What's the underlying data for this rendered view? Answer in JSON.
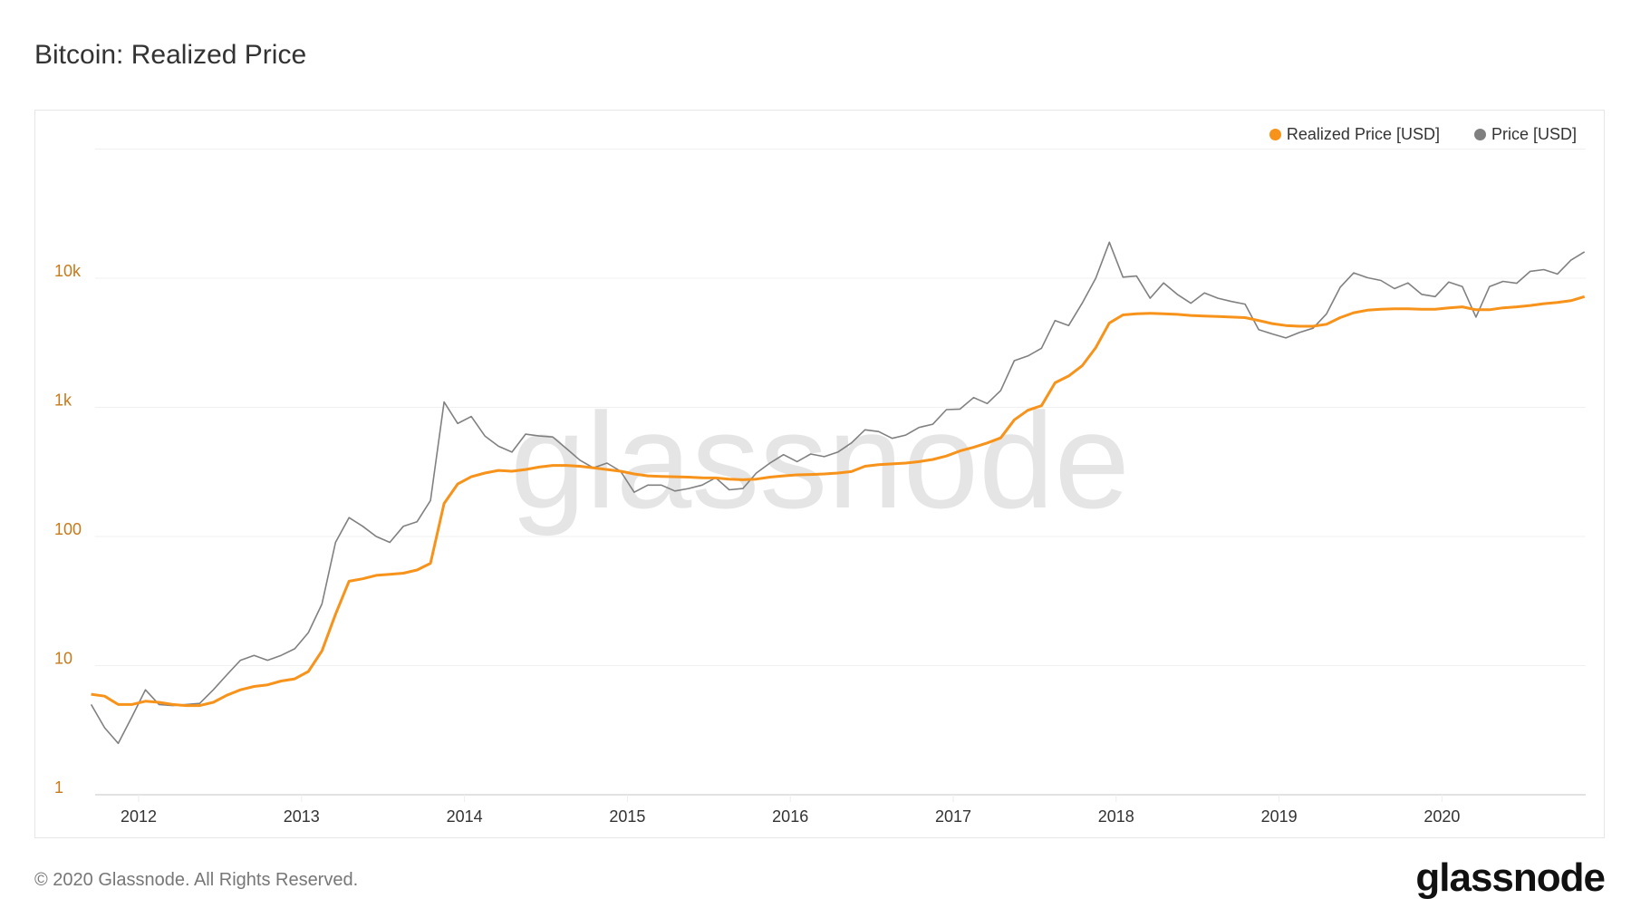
{
  "title": "Bitcoin: Realized Price",
  "footer": "© 2020 Glassnode. All Rights Reserved.",
  "logo": "glassnode",
  "watermark": "glassnode",
  "colors": {
    "realized": "#f7931a",
    "price": "#808080",
    "ytick": "#c8791a"
  },
  "legend": [
    {
      "label": "Realized Price [USD]",
      "color": "#f7931a"
    },
    {
      "label": "Price [USD]",
      "color": "#808080"
    }
  ],
  "chart_data": {
    "type": "line",
    "title": "Bitcoin: Realized Price",
    "yscale": "log",
    "ylim": [
      1,
      100000
    ],
    "yticks": [
      {
        "value": 1,
        "label": "1"
      },
      {
        "value": 10,
        "label": "10"
      },
      {
        "value": 100,
        "label": "100"
      },
      {
        "value": 1000,
        "label": "1k"
      },
      {
        "value": 10000,
        "label": "10k"
      }
    ],
    "xticks": [
      "2012",
      "2013",
      "2014",
      "2015",
      "2016",
      "2017",
      "2018",
      "2019",
      "2020"
    ],
    "grid": true,
    "legend_position": "top-right",
    "x": [
      "2011-09",
      "2011-10",
      "2011-11",
      "2011-12",
      "2012-01",
      "2012-02",
      "2012-03",
      "2012-04",
      "2012-05",
      "2012-06",
      "2012-07",
      "2012-08",
      "2012-09",
      "2012-10",
      "2012-11",
      "2012-12",
      "2013-01",
      "2013-02",
      "2013-03",
      "2013-04",
      "2013-05",
      "2013-06",
      "2013-07",
      "2013-08",
      "2013-09",
      "2013-10",
      "2013-11",
      "2013-12",
      "2014-01",
      "2014-02",
      "2014-03",
      "2014-04",
      "2014-05",
      "2014-06",
      "2014-07",
      "2014-08",
      "2014-09",
      "2014-10",
      "2014-11",
      "2014-12",
      "2015-01",
      "2015-02",
      "2015-03",
      "2015-04",
      "2015-05",
      "2015-06",
      "2015-07",
      "2015-08",
      "2015-09",
      "2015-10",
      "2015-11",
      "2015-12",
      "2016-01",
      "2016-02",
      "2016-03",
      "2016-04",
      "2016-05",
      "2016-06",
      "2016-07",
      "2016-08",
      "2016-09",
      "2016-10",
      "2016-11",
      "2016-12",
      "2017-01",
      "2017-02",
      "2017-03",
      "2017-04",
      "2017-05",
      "2017-06",
      "2017-07",
      "2017-08",
      "2017-09",
      "2017-10",
      "2017-11",
      "2017-12",
      "2018-01",
      "2018-02",
      "2018-03",
      "2018-04",
      "2018-05",
      "2018-06",
      "2018-07",
      "2018-08",
      "2018-09",
      "2018-10",
      "2018-11",
      "2018-12",
      "2019-01",
      "2019-02",
      "2019-03",
      "2019-04",
      "2019-05",
      "2019-06",
      "2019-07",
      "2019-08",
      "2019-09",
      "2019-10",
      "2019-11",
      "2019-12",
      "2020-01",
      "2020-02",
      "2020-03",
      "2020-04",
      "2020-05",
      "2020-06",
      "2020-07",
      "2020-08",
      "2020-09",
      "2020-10",
      "2020-11"
    ],
    "series": [
      {
        "name": "Realized Price [USD]",
        "color": "#f7931a",
        "values": [
          6,
          5.8,
          5.0,
          5.0,
          5.3,
          5.2,
          5.0,
          4.9,
          4.9,
          5.2,
          5.9,
          6.5,
          6.9,
          7.1,
          7.6,
          7.9,
          9,
          13,
          25,
          45,
          47,
          50,
          51,
          52,
          55,
          62,
          180,
          255,
          290,
          310,
          325,
          320,
          330,
          345,
          355,
          355,
          350,
          340,
          330,
          320,
          305,
          295,
          292,
          290,
          288,
          285,
          284,
          278,
          275,
          278,
          288,
          295,
          300,
          302,
          305,
          310,
          318,
          350,
          360,
          365,
          370,
          380,
          395,
          420,
          460,
          490,
          530,
          580,
          800,
          950,
          1030,
          1550,
          1750,
          2100,
          2900,
          4500,
          5200,
          5300,
          5350,
          5300,
          5250,
          5150,
          5100,
          5050,
          5000,
          4950,
          4700,
          4450,
          4300,
          4250,
          4250,
          4400,
          4950,
          5400,
          5650,
          5750,
          5800,
          5800,
          5750,
          5750,
          5900,
          6000,
          5700,
          5700,
          5900,
          6000,
          6150,
          6350,
          6500,
          6700,
          7200
        ]
      },
      {
        "name": "Price [USD]",
        "color": "#808080",
        "values": [
          5,
          3.3,
          2.5,
          4,
          6.5,
          5,
          4.9,
          5,
          5.1,
          6.5,
          8.5,
          11,
          12,
          11,
          12,
          13.5,
          18,
          30,
          90,
          140,
          120,
          100,
          90,
          120,
          130,
          190,
          1100,
          750,
          850,
          600,
          500,
          450,
          620,
          600,
          590,
          480,
          390,
          340,
          370,
          320,
          220,
          250,
          250,
          225,
          235,
          250,
          285,
          230,
          235,
          310,
          370,
          430,
          380,
          435,
          415,
          450,
          530,
          670,
          650,
          575,
          610,
          700,
          740,
          960,
          970,
          1190,
          1070,
          1350,
          2300,
          2500,
          2870,
          4700,
          4300,
          6400,
          10000,
          19000,
          10200,
          10400,
          7000,
          9200,
          7500,
          6400,
          7700,
          7000,
          6600,
          6300,
          4000,
          3700,
          3450,
          3800,
          4100,
          5300,
          8500,
          11000,
          10100,
          9600,
          8300,
          9200,
          7500,
          7200,
          9350,
          8600,
          5000,
          8600,
          9450,
          9130,
          11300,
          11650,
          10780,
          13800,
          16000
        ]
      }
    ]
  }
}
